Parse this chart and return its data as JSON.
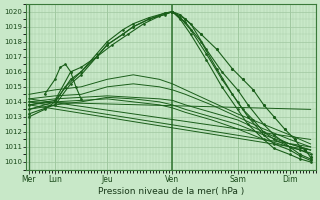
{
  "bg_color": "#c8e8c8",
  "grid_color": "#a0c8a0",
  "line_color": "#1a5e1a",
  "ylim": [
    1009.5,
    1020.5
  ],
  "yticks": [
    1010,
    1011,
    1012,
    1013,
    1014,
    1015,
    1016,
    1017,
    1018,
    1019,
    1020
  ],
  "xlabel": "Pression niveau de la mer( hPa )",
  "day_labels": [
    "Mer",
    "Lun",
    "Jeu",
    "Ven",
    "Sam",
    "Dim"
  ],
  "day_x": [
    0.0,
    0.5,
    1.5,
    2.75,
    4.0,
    5.0
  ],
  "xlim": [
    -0.05,
    5.5
  ],
  "series_peaked": [
    {
      "x": [
        0.0,
        0.5,
        0.8,
        1.0,
        1.3,
        1.5,
        1.8,
        2.0,
        2.3,
        2.6,
        2.75,
        2.9,
        3.1,
        3.4,
        3.7,
        4.0,
        4.2,
        4.5,
        4.7,
        5.0,
        5.2,
        5.4
      ],
      "y": [
        1013.8,
        1014.1,
        1016.0,
        1016.3,
        1017.0,
        1017.8,
        1018.5,
        1019.0,
        1019.5,
        1019.9,
        1020.0,
        1019.8,
        1019.2,
        1017.5,
        1016.0,
        1014.8,
        1013.8,
        1012.5,
        1011.8,
        1011.0,
        1010.5,
        1010.2
      ]
    },
    {
      "x": [
        0.0,
        0.5,
        0.8,
        1.0,
        1.3,
        1.5,
        1.8,
        2.0,
        2.3,
        2.6,
        2.75,
        2.9,
        3.1,
        3.4,
        3.7,
        4.0,
        4.2,
        4.5,
        4.7,
        5.0,
        5.2,
        5.4
      ],
      "y": [
        1013.5,
        1014.0,
        1015.5,
        1016.0,
        1017.2,
        1018.0,
        1018.8,
        1019.2,
        1019.6,
        1019.9,
        1020.0,
        1019.6,
        1018.8,
        1017.2,
        1015.5,
        1014.0,
        1013.0,
        1011.8,
        1011.2,
        1010.8,
        1010.4,
        1010.1
      ]
    },
    {
      "x": [
        0.0,
        0.5,
        0.8,
        1.0,
        1.3,
        1.5,
        1.8,
        2.0,
        2.3,
        2.6,
        2.75,
        2.9,
        3.1,
        3.4,
        3.7,
        4.0,
        4.2,
        4.5,
        4.7,
        5.0,
        5.2,
        5.4
      ],
      "y": [
        1013.2,
        1013.8,
        1015.2,
        1015.8,
        1017.0,
        1017.8,
        1018.5,
        1019.0,
        1019.5,
        1019.8,
        1020.0,
        1019.5,
        1018.5,
        1016.8,
        1015.0,
        1013.5,
        1012.5,
        1011.5,
        1010.9,
        1010.5,
        1010.2,
        1010.0
      ]
    },
    {
      "x": [
        0.0,
        0.3,
        0.5,
        0.7,
        1.0,
        1.3,
        1.6,
        1.9,
        2.2,
        2.5,
        2.75,
        3.0,
        3.3,
        3.6,
        3.9,
        4.1,
        4.3,
        4.5,
        4.7,
        5.0,
        5.2,
        5.4
      ],
      "y": [
        1013.0,
        1013.5,
        1014.0,
        1015.0,
        1016.0,
        1017.0,
        1017.8,
        1018.5,
        1019.2,
        1019.7,
        1020.0,
        1019.3,
        1018.0,
        1016.2,
        1014.5,
        1013.5,
        1012.8,
        1012.0,
        1011.5,
        1011.0,
        1010.8,
        1010.5
      ]
    }
  ],
  "series_flat": [
    {
      "x": [
        0.0,
        0.5,
        1.0,
        1.5,
        2.0,
        2.5,
        2.75,
        3.0,
        3.5,
        4.0,
        4.5,
        5.0,
        5.4
      ],
      "y": [
        1014.0,
        1014.2,
        1014.3,
        1014.4,
        1014.3,
        1014.2,
        1014.1,
        1013.8,
        1013.3,
        1012.8,
        1012.0,
        1011.2,
        1010.8
      ]
    },
    {
      "x": [
        0.0,
        0.5,
        1.0,
        1.5,
        2.0,
        2.5,
        2.75,
        3.0,
        3.5,
        4.0,
        4.5,
        5.0,
        5.4
      ],
      "y": [
        1013.8,
        1014.0,
        1014.1,
        1014.2,
        1014.0,
        1013.8,
        1013.6,
        1013.3,
        1012.8,
        1012.2,
        1011.5,
        1011.0,
        1010.6
      ]
    },
    {
      "x": [
        0.0,
        0.5,
        1.0,
        1.5,
        2.0,
        2.5,
        2.75,
        3.0,
        3.5,
        4.0,
        4.5,
        5.0,
        5.4
      ],
      "y": [
        1014.2,
        1014.4,
        1014.5,
        1015.0,
        1015.2,
        1015.0,
        1014.8,
        1014.5,
        1013.8,
        1013.0,
        1012.2,
        1011.5,
        1011.0
      ]
    },
    {
      "x": [
        0.0,
        0.5,
        1.0,
        1.5,
        2.0,
        2.5,
        2.75,
        3.0,
        3.5,
        4.0,
        4.5,
        5.0,
        5.4
      ],
      "y": [
        1014.5,
        1014.8,
        1015.0,
        1015.5,
        1015.8,
        1015.5,
        1015.2,
        1014.8,
        1014.0,
        1013.2,
        1012.5,
        1011.8,
        1011.2
      ]
    },
    {
      "x": [
        0.0,
        0.5,
        1.0,
        1.5,
        2.0,
        2.5,
        2.75,
        3.0,
        3.5,
        4.0,
        4.5,
        5.0,
        5.4
      ],
      "y": [
        1013.5,
        1013.8,
        1014.0,
        1014.3,
        1014.2,
        1014.0,
        1013.8,
        1013.5,
        1013.0,
        1012.5,
        1011.8,
        1011.2,
        1010.8
      ]
    },
    {
      "x": [
        0.0,
        5.4
      ],
      "y": [
        1014.0,
        1013.5
      ]
    },
    {
      "x": [
        0.0,
        5.4
      ],
      "y": [
        1014.2,
        1011.5
      ]
    },
    {
      "x": [
        0.0,
        5.4
      ],
      "y": [
        1014.0,
        1011.0
      ]
    },
    {
      "x": [
        0.0,
        5.4
      ],
      "y": [
        1013.8,
        1010.8
      ]
    }
  ],
  "extra_bump": {
    "x": [
      0.3,
      0.5,
      0.6,
      0.7,
      0.8,
      0.9,
      1.0
    ],
    "y": [
      1014.5,
      1015.5,
      1016.3,
      1016.5,
      1016.0,
      1015.0,
      1014.2
    ]
  },
  "marker_series": {
    "x": [
      2.75,
      3.0,
      3.3,
      3.6,
      3.9,
      4.1,
      4.3,
      4.5,
      4.7,
      4.9,
      5.1,
      5.2,
      5.3,
      5.4
    ],
    "y": [
      1020.0,
      1019.5,
      1018.5,
      1017.5,
      1016.2,
      1015.5,
      1014.8,
      1013.8,
      1013.0,
      1012.2,
      1011.5,
      1011.0,
      1010.8,
      1010.3
    ]
  }
}
